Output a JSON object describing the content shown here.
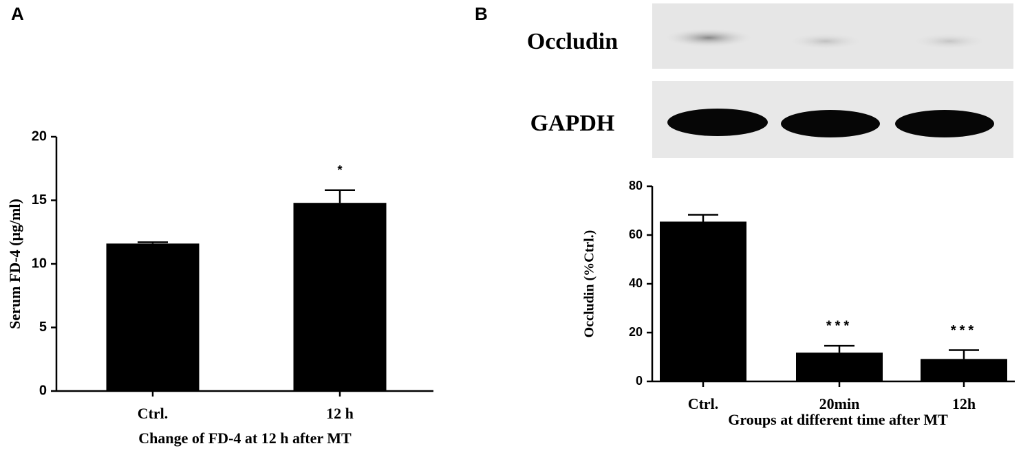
{
  "chart_data": [
    {
      "type": "bar",
      "panel_label": "A",
      "ylabel": "Serum FD-4 (μg/ml)",
      "xlabel": "Change of FD-4 at 12 h after MT",
      "categories": [
        "Ctrl.",
        "12 h"
      ],
      "values": [
        11.6,
        14.8
      ],
      "errors": [
        0.1,
        1.0
      ],
      "annotations": [
        null,
        "*"
      ],
      "color": "#000000",
      "ylim": [
        0,
        20
      ],
      "yticks": [
        0,
        5,
        10,
        15,
        20
      ],
      "grid": false
    },
    {
      "type": "bar",
      "panel_label": "B",
      "blot_labels": [
        "Occludin",
        "GAPDH"
      ],
      "ylabel": "Occludin (%Ctrl.)",
      "xlabel": "Groups at different time after MT",
      "categories": [
        "Ctrl.",
        "20min",
        "12h"
      ],
      "values": [
        65.5,
        11.8,
        9.2
      ],
      "errors": [
        2.8,
        2.8,
        3.6
      ],
      "annotations": [
        null,
        "***",
        "***"
      ],
      "color": "#000000",
      "ylim": [
        0,
        80
      ],
      "yticks": [
        0,
        20,
        40,
        60,
        80
      ],
      "grid": false
    }
  ]
}
